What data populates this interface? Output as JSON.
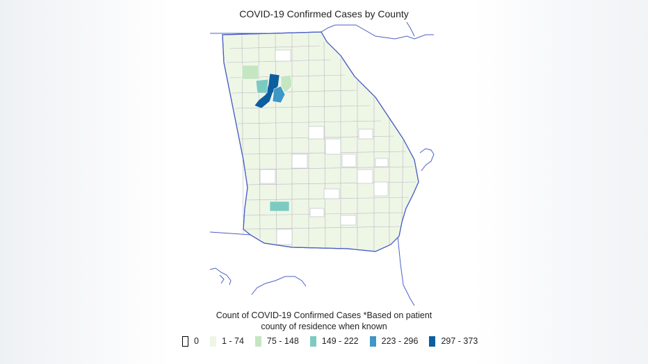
{
  "title": "COVID-19 Confirmed Cases by County",
  "legend": {
    "title_line1": "Count of COVID-19 Confirmed Cases *Based on patient",
    "title_line2": "county of residence when known",
    "items": [
      {
        "label": "0",
        "color": "#ffffff",
        "border": "#000000"
      },
      {
        "label": "1 - 74",
        "color": "#eef6e6",
        "border": "#eef6e6"
      },
      {
        "label": "75 - 148",
        "color": "#c4e6c1",
        "border": "#c4e6c1"
      },
      {
        "label": "149 - 222",
        "color": "#7dcbc0",
        "border": "#7dcbc0"
      },
      {
        "label": "223 - 296",
        "color": "#3f97c6",
        "border": "#3f97c6"
      },
      {
        "label": "297 - 373",
        "color": "#0d5e9e",
        "border": "#0d5e9e"
      }
    ]
  },
  "map": {
    "region": "Georgia",
    "boundary_color": "#4a5fc4",
    "county_border_color": "#b8b8c4",
    "high_count_counties": [
      {
        "category": "297 - 373"
      },
      {
        "category": "223 - 296"
      },
      {
        "category": "149 - 222"
      },
      {
        "category": "149 - 222"
      },
      {
        "category": "75 - 148"
      },
      {
        "category": "75 - 148"
      }
    ]
  }
}
